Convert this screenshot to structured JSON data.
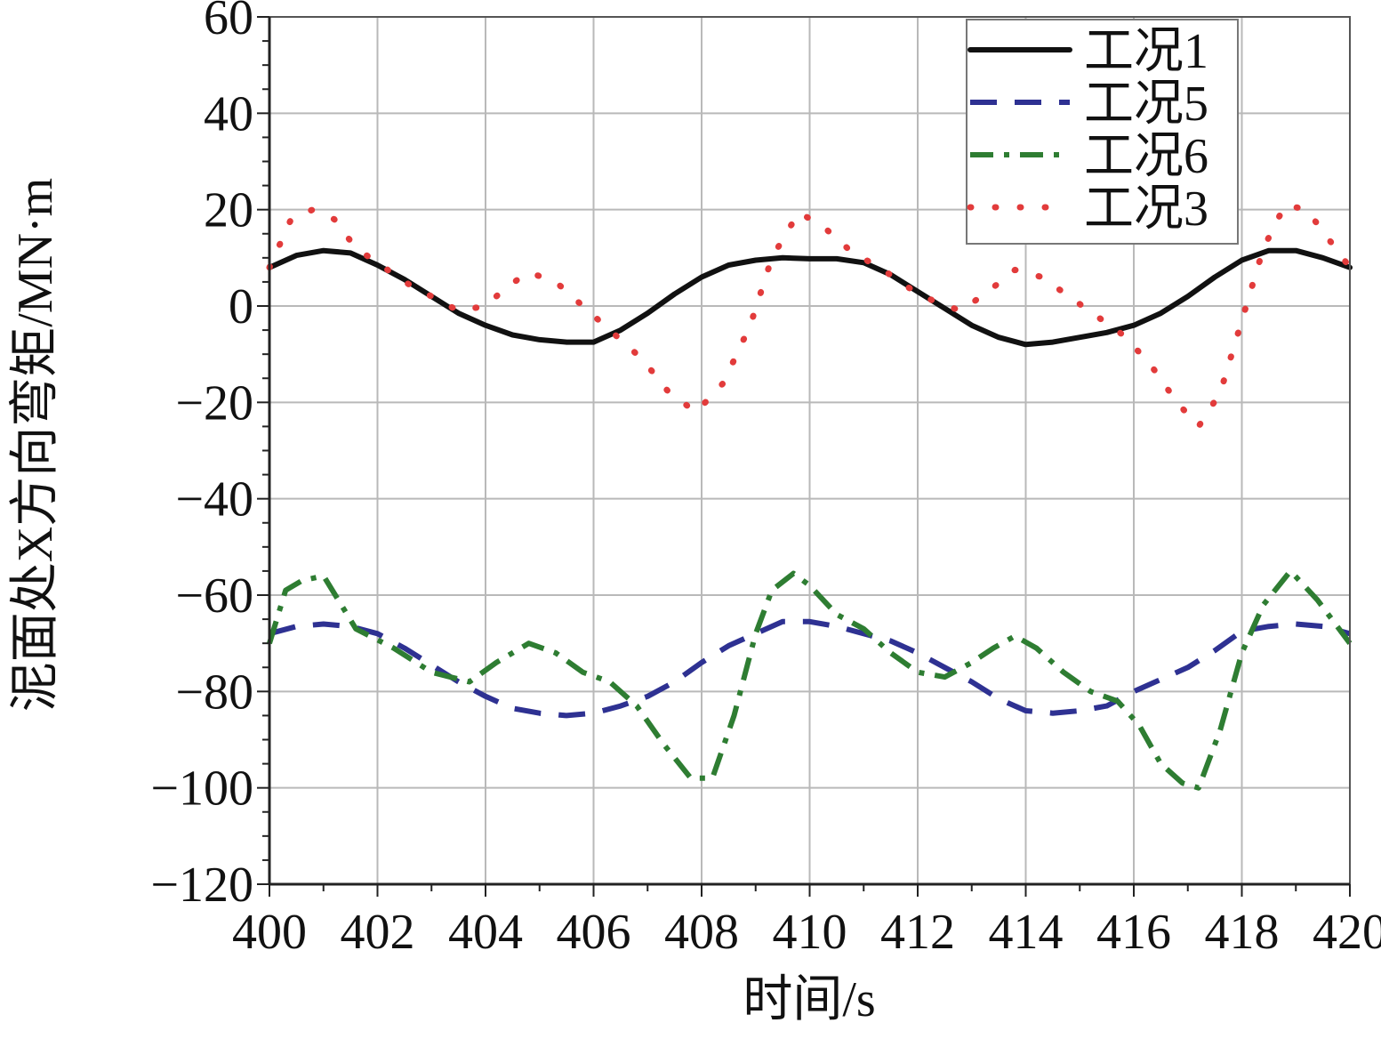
{
  "chart_data": {
    "type": "line",
    "title": "",
    "xlabel": "时间/s",
    "ylabel": "泥面处X方向弯矩/MN·m",
    "xlim": [
      400,
      420
    ],
    "ylim": [
      -120,
      60
    ],
    "xticks": [
      400,
      402,
      404,
      406,
      408,
      410,
      412,
      414,
      416,
      418,
      420
    ],
    "yticks": [
      60,
      40,
      20,
      0,
      -20,
      -40,
      -60,
      -80,
      -100,
      -120
    ],
    "ytick_labels": [
      "60",
      "40",
      "20",
      "0",
      "−20",
      "−40",
      "−60",
      "−80",
      "−100",
      "−120"
    ],
    "grid": true,
    "legend_position": "top-right",
    "series": [
      {
        "name": "工况1",
        "style": "solid",
        "color": "#111111",
        "x": [
          400,
          400.5,
          401,
          401.5,
          402,
          402.5,
          403,
          403.5,
          404,
          404.5,
          405,
          405.5,
          406,
          406.5,
          407,
          407.5,
          408,
          408.5,
          409,
          409.5,
          410,
          410.5,
          411,
          411.5,
          412,
          412.5,
          413,
          413.5,
          414,
          414.5,
          415,
          415.5,
          416,
          416.5,
          417,
          417.5,
          418,
          418.5,
          419,
          419.5,
          420
        ],
        "y": [
          8,
          10.5,
          11.5,
          11,
          8.5,
          5.5,
          2,
          -1.5,
          -4,
          -6,
          -7,
          -7.5,
          -7.5,
          -5,
          -1.5,
          2.5,
          6,
          8.5,
          9.5,
          10,
          9.8,
          9.8,
          9,
          6.5,
          3,
          -0.5,
          -4,
          -6.5,
          -8,
          -7.5,
          -6.5,
          -5.5,
          -4,
          -1.5,
          2,
          6,
          9.5,
          11.5,
          11.5,
          10,
          8
        ]
      },
      {
        "name": "工况5",
        "style": "dashed",
        "color": "#2e3192",
        "x": [
          400,
          400.5,
          401,
          401.5,
          402,
          402.5,
          403,
          403.5,
          404,
          404.5,
          405,
          405.5,
          406,
          406.5,
          407,
          407.5,
          408,
          408.5,
          409,
          409.5,
          410,
          410.5,
          411,
          411.5,
          412,
          412.5,
          413,
          413.5,
          414,
          414.5,
          415,
          415.5,
          416,
          416.5,
          417,
          417.5,
          418,
          418.5,
          419,
          419.5,
          420
        ],
        "y": [
          -68,
          -66.5,
          -66,
          -66.5,
          -68,
          -71,
          -74.5,
          -78,
          -81,
          -83.5,
          -84.5,
          -85,
          -84.5,
          -83,
          -81,
          -78,
          -74,
          -70.5,
          -68,
          -65.5,
          -65.5,
          -66.5,
          -68,
          -69.5,
          -72,
          -75,
          -78,
          -81.5,
          -84,
          -84.5,
          -84,
          -83,
          -80,
          -77.5,
          -75,
          -71.5,
          -67.5,
          -66.5,
          -66,
          -66.5,
          -68
        ]
      },
      {
        "name": "工况6",
        "style": "dashdot",
        "color": "#2e7d32",
        "x": [
          400,
          400.3,
          400.6,
          401,
          401.6,
          402.3,
          403,
          403.7,
          404.2,
          404.8,
          405.3,
          405.8,
          406.3,
          406.8,
          407.3,
          407.8,
          408.2,
          408.6,
          409,
          409.3,
          409.7,
          410,
          410.5,
          411,
          411.5,
          412,
          412.5,
          413,
          413.4,
          413.8,
          414.2,
          414.7,
          415.2,
          415.7,
          416.1,
          416.5,
          416.9,
          417.2,
          417.6,
          418,
          418.4,
          418.9,
          419.4,
          420
        ],
        "y": [
          -70,
          -59,
          -57,
          -56,
          -67,
          -71,
          -76,
          -78,
          -74,
          -70,
          -72,
          -76,
          -78,
          -83,
          -91,
          -98,
          -98,
          -85,
          -68,
          -59,
          -55.5,
          -58,
          -64,
          -67,
          -72,
          -76,
          -77,
          -74,
          -71,
          -68.5,
          -71,
          -76,
          -80,
          -82,
          -87,
          -95,
          -99,
          -100,
          -88,
          -72,
          -62,
          -55,
          -61,
          -70
        ]
      },
      {
        "name": "工况3",
        "style": "dotted",
        "color": "#e23b3b",
        "x": [
          400,
          400.4,
          400.8,
          401.2,
          401.6,
          402,
          402.5,
          403,
          403.5,
          404,
          404.4,
          404.8,
          405.3,
          405.9,
          406.4,
          406.9,
          407.4,
          407.9,
          408.4,
          408.9,
          409.3,
          409.8,
          410.3,
          410.8,
          411.3,
          411.8,
          412.3,
          412.8,
          413.3,
          413.8,
          414.3,
          414.8,
          415.3,
          415.8,
          416.3,
          416.8,
          417.2,
          417.6,
          418,
          418.4,
          418.8,
          419.2,
          419.6,
          420
        ],
        "y": [
          8,
          18,
          20,
          18,
          12,
          9,
          5,
          2,
          -1,
          0,
          4,
          7,
          5,
          -1,
          -6,
          -11,
          -18,
          -22,
          -16,
          -4,
          10,
          19.5,
          16,
          11,
          8,
          4,
          1,
          -1,
          3,
          7.5,
          6,
          2,
          -2,
          -6,
          -12,
          -20,
          -25,
          -18,
          -3,
          12,
          21,
          20,
          14,
          8
        ]
      }
    ]
  }
}
